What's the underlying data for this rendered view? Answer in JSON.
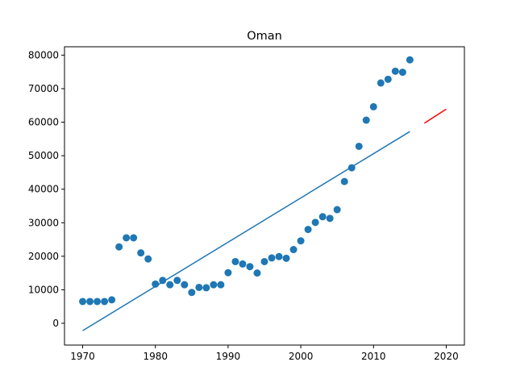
{
  "chart_data": {
    "type": "scatter",
    "title": "Oman",
    "xlabel": "",
    "ylabel": "",
    "xlim": [
      1967.5,
      2022.5
    ],
    "ylim": [
      -6500,
      82500
    ],
    "xticks": [
      1970,
      1980,
      1990,
      2000,
      2010,
      2020
    ],
    "yticks": [
      0,
      10000,
      20000,
      30000,
      40000,
      50000,
      60000,
      70000,
      80000
    ],
    "grid": false,
    "series": [
      {
        "kind": "scatter",
        "color": "#1f77b4",
        "x": [
          1970,
          1971,
          1972,
          1973,
          1974,
          1975,
          1976,
          1977,
          1978,
          1979,
          1980,
          1981,
          1982,
          1983,
          1984,
          1985,
          1986,
          1987,
          1988,
          1989,
          1990,
          1991,
          1992,
          1993,
          1994,
          1995,
          1996,
          1997,
          1998,
          1999,
          2000,
          2001,
          2002,
          2003,
          2004,
          2005,
          2006,
          2007,
          2008,
          2009,
          2010,
          2011,
          2012,
          2013,
          2014,
          2015
        ],
        "y": [
          6500,
          6500,
          6500,
          6500,
          7000,
          22800,
          25500,
          25500,
          21000,
          19200,
          11700,
          12800,
          11500,
          12800,
          11500,
          9200,
          10700,
          10600,
          11500,
          11500,
          15100,
          18400,
          17700,
          16900,
          15000,
          18400,
          19500,
          19900,
          19400,
          22000,
          24600,
          28000,
          30100,
          31800,
          31300,
          33900,
          42300,
          46400,
          52800,
          60600,
          64600,
          71700,
          72800,
          75200,
          74900,
          78600
        ]
      },
      {
        "kind": "line",
        "color": "#1f77b4",
        "x": [
          1970,
          2015
        ],
        "y": [
          -2200,
          57200
        ]
      },
      {
        "kind": "line",
        "color": "#ff0000",
        "x": [
          2017,
          2020
        ],
        "y": [
          59700,
          63900
        ]
      }
    ]
  }
}
